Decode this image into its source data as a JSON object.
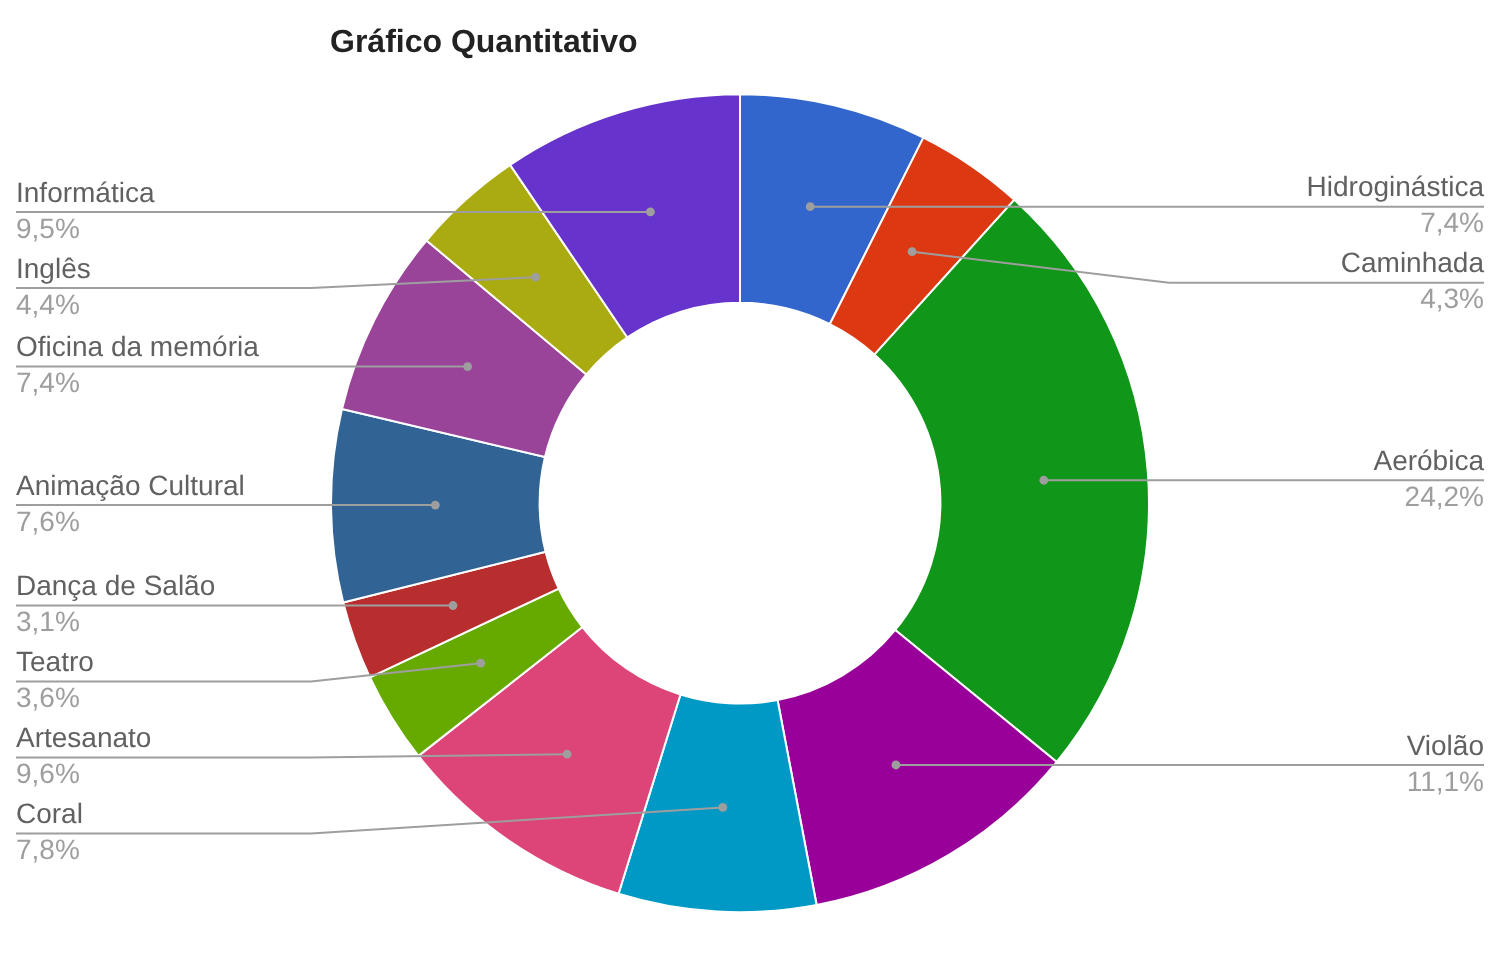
{
  "chart_data": {
    "type": "donut",
    "title": "Gráfico Quantitativo",
    "categories": [
      "Hidroginástica",
      "Caminhada",
      "Aeróbica",
      "Violão",
      "Coral",
      "Artesanato",
      "Teatro",
      "Dança de Salão",
      "Animação Cultural",
      "Oficina da memória",
      "Inglês",
      "Informática"
    ],
    "values": [
      7.4,
      4.3,
      24.2,
      11.1,
      7.8,
      9.6,
      3.6,
      3.1,
      7.6,
      7.4,
      4.4,
      9.5
    ],
    "value_labels": [
      "7,4%",
      "4,3%",
      "24,2%",
      "11,1%",
      "7,8%",
      "9,6%",
      "3,6%",
      "3,1%",
      "7,6%",
      "7,4%",
      "4,4%",
      "9,5%"
    ],
    "colors": [
      "#3366cc",
      "#dc3912",
      "#109618",
      "#990099",
      "#0099c6",
      "#dd4477",
      "#66aa00",
      "#b82e2e",
      "#316395",
      "#994499",
      "#aaaa11",
      "#6633cc"
    ],
    "legend": false
  }
}
